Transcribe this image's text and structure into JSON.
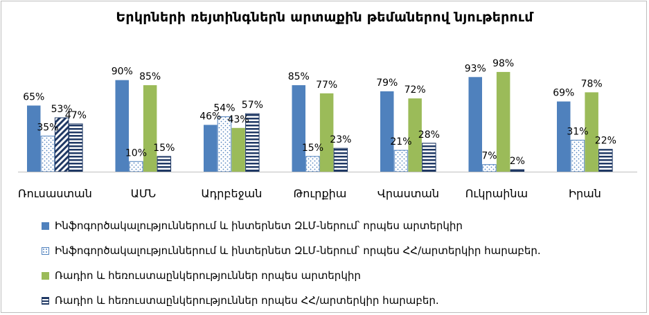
{
  "chart_data": {
    "type": "bar",
    "title": "Երկրների  ռեյտինգներն արտաքին թեմաներով նյութերում",
    "categories": [
      "Ռուսաստան",
      "ԱՄՆ",
      "Ադրբեջան",
      "Թուրքիա",
      "Վրաստան",
      "Ուկրաինա",
      "Իրան"
    ],
    "series": [
      {
        "name": "Ինֆոգործակալություններում և ինտերնետ ԶԼՄ-ներում՝  որպես արտերկիր",
        "values": [
          65,
          90,
          46,
          85,
          79,
          93,
          69
        ],
        "labels": [
          "65%",
          "90%",
          "46%",
          "85%",
          "79%",
          "93%",
          "69%"
        ],
        "color": "#4f81bd",
        "pattern": "solid"
      },
      {
        "name": "Ինֆոգործակալություններում և ինտերնետ ԶԼՄ-ներում՝  որպես ՀՀ/արտերկիր հարաբեր.",
        "values": [
          35,
          10,
          54,
          15,
          21,
          7,
          31
        ],
        "labels": [
          "35%",
          "10%",
          "54%",
          "15%",
          "21%",
          "7%",
          "31%"
        ],
        "color": "#4f81bd",
        "pattern": "dots"
      },
      {
        "name": "Ռադիո և հեռուստաընկերություններ որպես արտերկիր",
        "values": [
          53,
          85,
          43,
          77,
          72,
          98,
          78
        ],
        "labels": [
          "53%",
          "85%",
          "43%",
          "77%",
          "72%",
          "98%",
          "78%"
        ],
        "color": "#9bbb59",
        "pattern": "solid",
        "overrides": [
          {
            "index": 0,
            "color": "#1f3864",
            "pattern": "diagonal"
          }
        ]
      },
      {
        "name": "Ռադիո և հեռուստաընկերություններ որպես ՀՀ/արտերկիր հարաբեր.",
        "values": [
          47,
          15,
          57,
          23,
          28,
          2,
          22
        ],
        "labels": [
          "47%",
          "15%",
          "57%",
          "23%",
          "28%",
          "2%",
          "22%"
        ],
        "color": "#1f3864",
        "pattern": "horizontal"
      }
    ],
    "ylim": [
      0,
      100
    ],
    "grid": false,
    "legend_position": "bottom"
  }
}
